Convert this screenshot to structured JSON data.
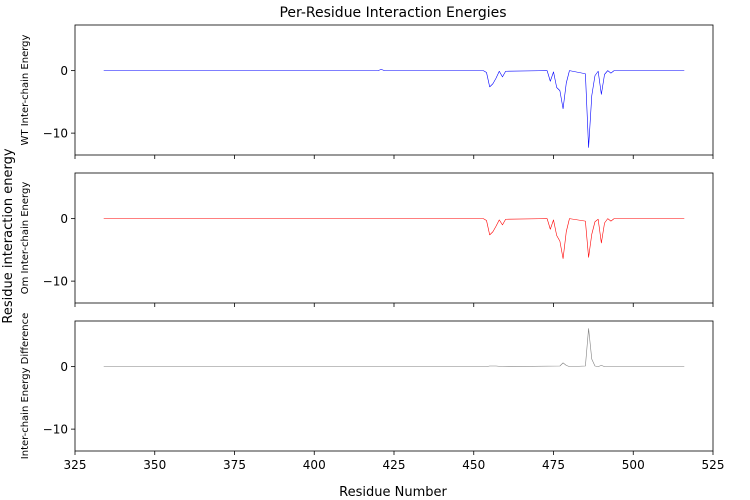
{
  "chart_data": {
    "type": "line",
    "title": "Per-Residue Interaction Energies",
    "xlabel": "Residue Number",
    "ylabel": "Residue interaction energy",
    "xlim": [
      325,
      525
    ],
    "ylim": [
      -13.5,
      7.3
    ],
    "x_ticks": [
      325,
      350,
      375,
      400,
      425,
      450,
      475,
      500,
      525
    ],
    "y_ticks": [
      0,
      -10
    ],
    "grid": false,
    "panels": [
      {
        "name": "wt",
        "ylabel": "WT Inter-chain Energy",
        "color": "#0000ff",
        "points": [
          [
            334,
            0
          ],
          [
            420,
            0
          ],
          [
            421,
            0.2
          ],
          [
            422,
            0
          ],
          [
            453,
            0
          ],
          [
            454,
            -0.3
          ],
          [
            455,
            -2.6
          ],
          [
            456,
            -2.1
          ],
          [
            457,
            -1.2
          ],
          [
            458,
            -0.1
          ],
          [
            459,
            -1.0
          ],
          [
            460,
            -0.1
          ],
          [
            473,
            0
          ],
          [
            474,
            -1.7
          ],
          [
            475,
            -0.2
          ],
          [
            476,
            -2.7
          ],
          [
            477,
            -3.2
          ],
          [
            478,
            -6.1
          ],
          [
            479,
            -2.0
          ],
          [
            480,
            0
          ],
          [
            485,
            -0.5
          ],
          [
            486,
            -12.3
          ],
          [
            487,
            -4.0
          ],
          [
            488,
            -0.8
          ],
          [
            489,
            -0.1
          ],
          [
            490,
            -3.8
          ],
          [
            491,
            -0.6
          ],
          [
            492,
            0
          ],
          [
            493,
            -0.4
          ],
          [
            494,
            0
          ],
          [
            516,
            0
          ]
        ]
      },
      {
        "name": "om",
        "ylabel": "Om Inter-chain Energy",
        "color": "#ff0000",
        "points": [
          [
            334,
            0
          ],
          [
            453,
            0
          ],
          [
            454,
            -0.3
          ],
          [
            455,
            -2.6
          ],
          [
            456,
            -2.1
          ],
          [
            457,
            -1.2
          ],
          [
            458,
            -0.2
          ],
          [
            459,
            -1.0
          ],
          [
            460,
            -0.1
          ],
          [
            473,
            0
          ],
          [
            474,
            -1.7
          ],
          [
            475,
            -0.2
          ],
          [
            476,
            -2.7
          ],
          [
            477,
            -3.6
          ],
          [
            478,
            -6.4
          ],
          [
            479,
            -2.1
          ],
          [
            480,
            0
          ],
          [
            485,
            -0.4
          ],
          [
            486,
            -6.2
          ],
          [
            487,
            -2.5
          ],
          [
            488,
            -0.5
          ],
          [
            489,
            -0.1
          ],
          [
            490,
            -3.9
          ],
          [
            491,
            -0.7
          ],
          [
            492,
            0
          ],
          [
            493,
            -0.4
          ],
          [
            494,
            0
          ],
          [
            516,
            0
          ]
        ]
      },
      {
        "name": "difference",
        "ylabel": "Inter-chain Energy Difference",
        "color": "#808080",
        "points": [
          [
            334,
            0
          ],
          [
            454,
            0
          ],
          [
            455,
            0.1
          ],
          [
            457,
            0.1
          ],
          [
            459,
            0
          ],
          [
            477,
            0.1
          ],
          [
            478,
            0.6
          ],
          [
            479,
            0.2
          ],
          [
            480,
            0
          ],
          [
            485,
            0.1
          ],
          [
            486,
            6.1
          ],
          [
            487,
            1.2
          ],
          [
            488,
            0.1
          ],
          [
            489,
            0
          ],
          [
            490,
            0.2
          ],
          [
            491,
            0
          ],
          [
            516,
            0
          ]
        ]
      }
    ]
  }
}
